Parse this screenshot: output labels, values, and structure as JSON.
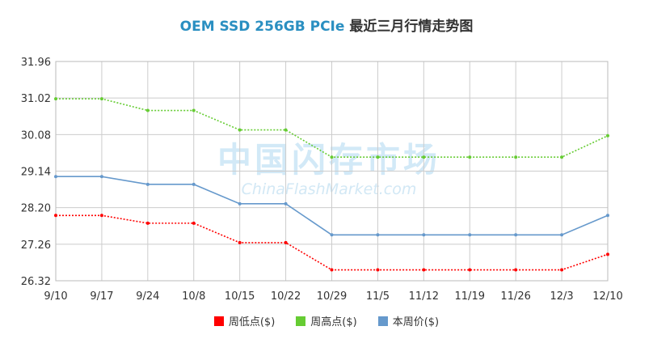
{
  "title_en": "OEM SSD 256GB PCIe",
  "title_cn": "最近三月行情走势图",
  "watermark": {
    "cn": "中国闪存市场",
    "en": "ChinaFlashMarket.com"
  },
  "chart_data": {
    "type": "line",
    "categories": [
      "9/10",
      "9/17",
      "9/24",
      "10/8",
      "10/15",
      "10/22",
      "10/29",
      "11/5",
      "11/12",
      "11/19",
      "11/26",
      "12/3",
      "12/10"
    ],
    "y_ticks": [
      "26.32",
      "27.26",
      "28.20",
      "29.14",
      "30.08",
      "31.02",
      "31.96"
    ],
    "ylim": [
      26.32,
      31.96
    ],
    "grid": true,
    "legend_position": "bottom",
    "series": [
      {
        "name": "周低点($)",
        "color": "#ff0000",
        "style": "dotted",
        "values": [
          28.0,
          28.0,
          27.8,
          27.8,
          27.3,
          27.3,
          26.6,
          26.6,
          26.6,
          26.6,
          26.6,
          26.6,
          27.0
        ]
      },
      {
        "name": "周高点($)",
        "color": "#66cc33",
        "style": "dotted",
        "values": [
          31.0,
          31.0,
          30.7,
          30.7,
          30.2,
          30.2,
          29.5,
          29.5,
          29.5,
          29.5,
          29.5,
          29.5,
          30.05
        ]
      },
      {
        "name": "本周价($)",
        "color": "#6699cc",
        "style": "solid",
        "values": [
          29.0,
          29.0,
          28.8,
          28.8,
          28.3,
          28.3,
          27.5,
          27.5,
          27.5,
          27.5,
          27.5,
          27.5,
          28.0
        ]
      }
    ]
  }
}
